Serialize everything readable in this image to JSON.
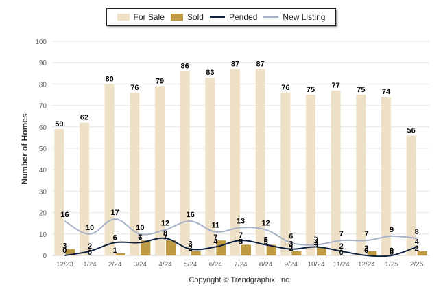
{
  "legend": {
    "for_sale": "For Sale",
    "sold": "Sold",
    "pended": "Pended",
    "new_listing": "New Listing"
  },
  "copyright": "Copyright © Trendgraphix, Inc.",
  "colors": {
    "for_sale": "#efe0c8",
    "sold": "#bf9a44",
    "pended": "#0c1f3f",
    "new_listing": "#a7b1c9",
    "grid": "#e6e6e6",
    "axis_text": "#666666"
  },
  "chart_data": {
    "type": "bar",
    "categories": [
      "12/23",
      "1/24",
      "2/24",
      "3/24",
      "4/24",
      "5/24",
      "6/24",
      "7/24",
      "8/24",
      "9/24",
      "10/24",
      "11/24",
      "12/24",
      "1/25",
      "2/25"
    ],
    "ylabel": "Number of Homes",
    "ylim": [
      0,
      100
    ],
    "yticks": [
      0,
      10,
      20,
      30,
      40,
      50,
      60,
      70,
      80,
      90,
      100
    ],
    "grid": true,
    "legend_position": "top",
    "series": [
      {
        "name": "For Sale",
        "kind": "bar",
        "values": [
          59,
          62,
          80,
          76,
          79,
          86,
          83,
          87,
          87,
          76,
          75,
          77,
          75,
          74,
          56
        ]
      },
      {
        "name": "Sold",
        "kind": "bar",
        "values": [
          3,
          0,
          1,
          7,
          7,
          2,
          7,
          5,
          5,
          2,
          4,
          0,
          2,
          0,
          2
        ]
      },
      {
        "name": "Pended",
        "kind": "line",
        "values": [
          0,
          2,
          6,
          6,
          8,
          3,
          4,
          7,
          5,
          3,
          4,
          2,
          0,
          0,
          4
        ]
      },
      {
        "name": "New Listing",
        "kind": "line",
        "values": [
          16,
          10,
          17,
          10,
          12,
          16,
          11,
          13,
          12,
          6,
          5,
          7,
          7,
          9,
          8
        ]
      }
    ]
  }
}
